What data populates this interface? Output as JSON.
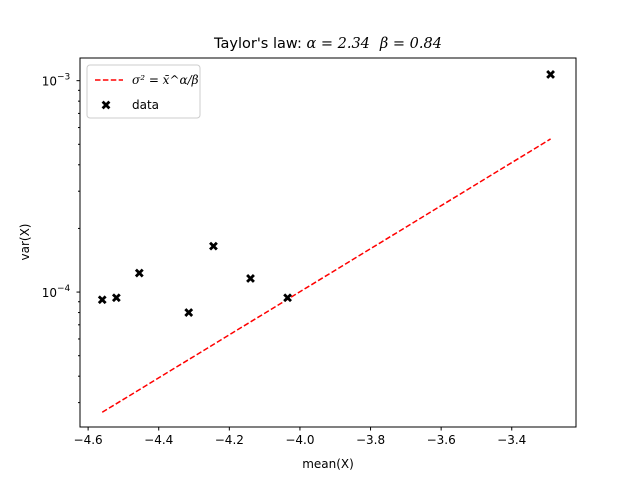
{
  "chart_data": {
    "type": "scatter",
    "title_prefix": "Taylor's law: ",
    "title_alpha": "α = 2.34",
    "title_beta": "β = 0.84",
    "xlabel": "mean(X)",
    "ylabel": "var(X)",
    "xlim": [
      -4.623,
      -3.218
    ],
    "ylim": [
      2.3e-05,
      0.00128
    ],
    "yscale": "log",
    "x_ticks": [
      -4.6,
      -4.4,
      -4.2,
      -4.0,
      -3.8,
      -3.6,
      -3.4
    ],
    "x_tick_labels": [
      "−4.6",
      "−4.4",
      "−4.2",
      "−4.0",
      "−3.8",
      "−3.6",
      "−3.4"
    ],
    "y_ticks": [
      0.0001,
      0.001
    ],
    "y_tick_base": "10",
    "y_tick_exponents": [
      "−4",
      "−3"
    ],
    "grid": false,
    "legend_position": "top-left",
    "series": [
      {
        "name": "data",
        "kind": "scatter",
        "marker": "X",
        "color": "#000000",
        "x": [
          -4.56,
          -4.52,
          -4.455,
          -4.315,
          -4.245,
          -4.14,
          -4.035,
          -3.29
        ],
        "y": [
          9.2e-05,
          9.4e-05,
          0.000123,
          8e-05,
          0.000165,
          0.000116,
          9.4e-05,
          0.00107
        ]
      },
      {
        "name": "σ² = x̄^α/β",
        "kind": "line",
        "style": "dashed",
        "color": "#ff0000",
        "x": [
          -4.56,
          -3.29
        ],
        "y": [
          2.7e-05,
          0.00053
        ]
      }
    ]
  }
}
